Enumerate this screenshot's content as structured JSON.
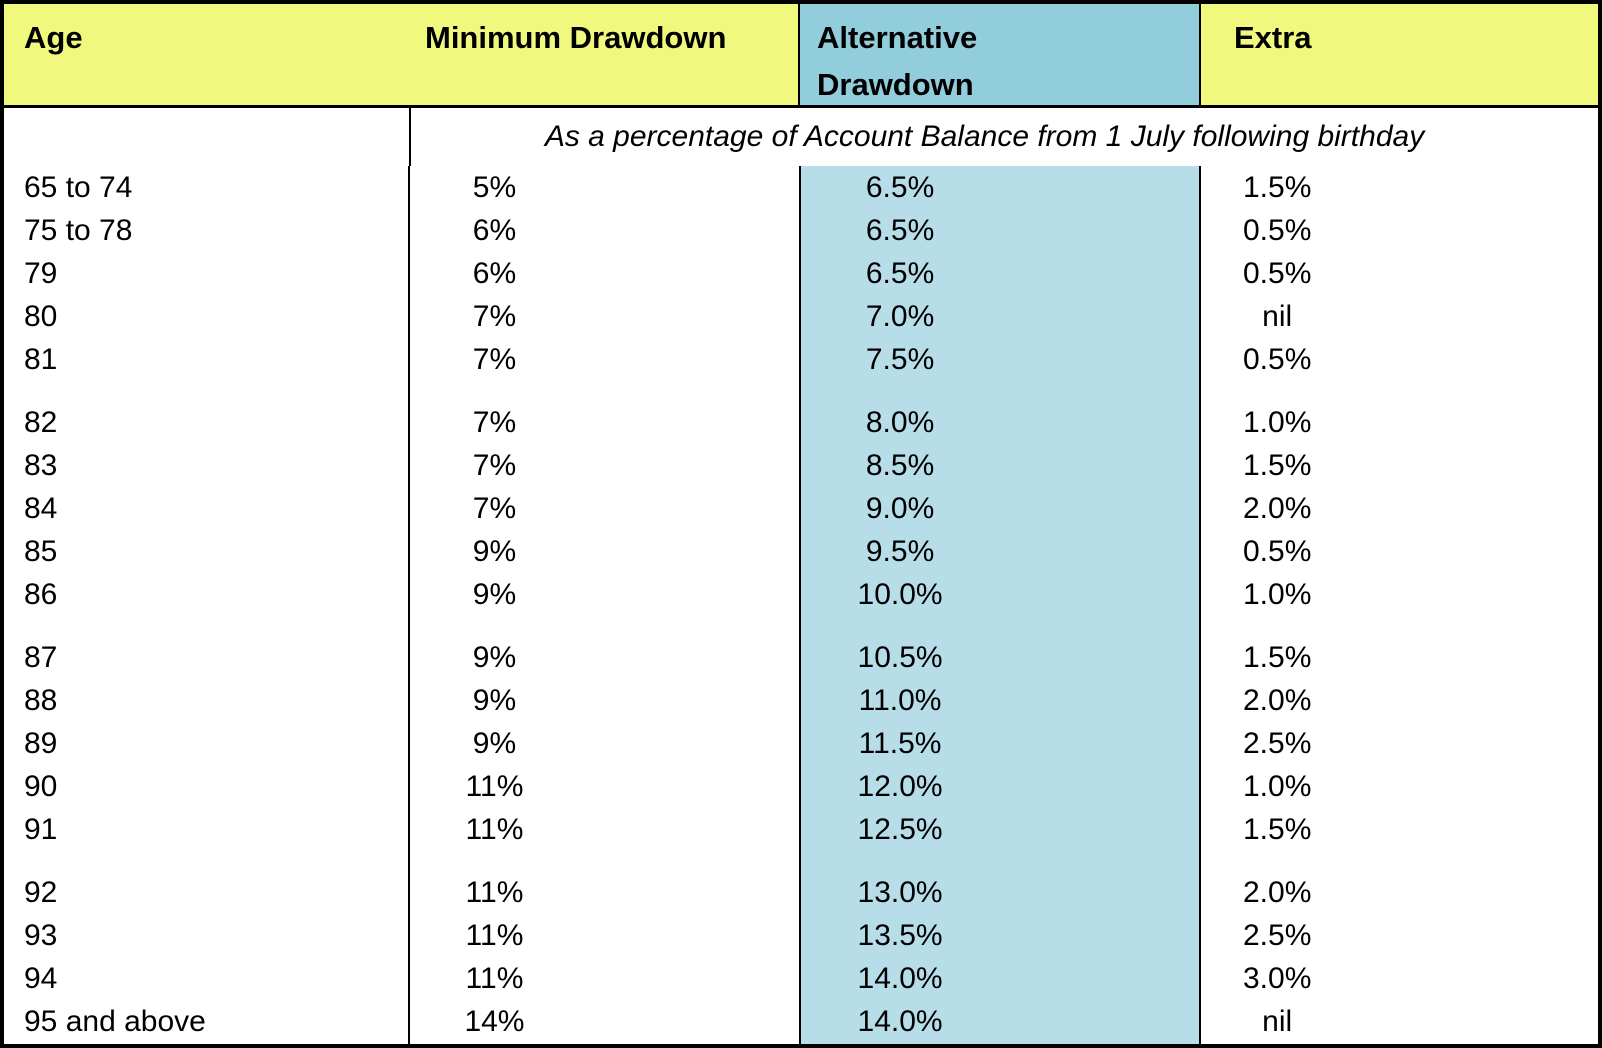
{
  "table": {
    "headers": [
      "Age",
      "Minimum Drawdown",
      "Alternative Drawdown",
      "Extra"
    ],
    "subtitle": "As a percentage of Account Balance from 1 July following birthday",
    "column_keys": [
      "age",
      "minimum_drawdown",
      "alternative_drawdown",
      "extra"
    ],
    "groups": [
      {
        "rows": [
          {
            "age": "65 to 74",
            "minimum_drawdown": "5%",
            "alternative_drawdown": "6.5%",
            "extra": "1.5%"
          },
          {
            "age": "75 to 78",
            "minimum_drawdown": "6%",
            "alternative_drawdown": "6.5%",
            "extra": "0.5%"
          },
          {
            "age": "79",
            "minimum_drawdown": "6%",
            "alternative_drawdown": "6.5%",
            "extra": "0.5%"
          },
          {
            "age": "80",
            "minimum_drawdown": "7%",
            "alternative_drawdown": "7.0%",
            "extra": "nil"
          },
          {
            "age": "81",
            "minimum_drawdown": "7%",
            "alternative_drawdown": "7.5%",
            "extra": "0.5%"
          }
        ]
      },
      {
        "rows": [
          {
            "age": "82",
            "minimum_drawdown": "7%",
            "alternative_drawdown": "8.0%",
            "extra": "1.0%"
          },
          {
            "age": "83",
            "minimum_drawdown": "7%",
            "alternative_drawdown": "8.5%",
            "extra": "1.5%"
          },
          {
            "age": "84",
            "minimum_drawdown": "7%",
            "alternative_drawdown": "9.0%",
            "extra": "2.0%"
          },
          {
            "age": "85",
            "minimum_drawdown": "9%",
            "alternative_drawdown": "9.5%",
            "extra": "0.5%"
          },
          {
            "age": "86",
            "minimum_drawdown": "9%",
            "alternative_drawdown": "10.0%",
            "extra": "1.0%"
          }
        ]
      },
      {
        "rows": [
          {
            "age": "87",
            "minimum_drawdown": "9%",
            "alternative_drawdown": "10.5%",
            "extra": "1.5%"
          },
          {
            "age": "88",
            "minimum_drawdown": "9%",
            "alternative_drawdown": "11.0%",
            "extra": "2.0%"
          },
          {
            "age": "89",
            "minimum_drawdown": "9%",
            "alternative_drawdown": "11.5%",
            "extra": "2.5%"
          },
          {
            "age": "90",
            "minimum_drawdown": "11%",
            "alternative_drawdown": "12.0%",
            "extra": "1.0%"
          },
          {
            "age": "91",
            "minimum_drawdown": "11%",
            "alternative_drawdown": "12.5%",
            "extra": "1.5%"
          }
        ]
      },
      {
        "rows": [
          {
            "age": "92",
            "minimum_drawdown": "11%",
            "alternative_drawdown": "13.0%",
            "extra": "2.0%"
          },
          {
            "age": "93",
            "minimum_drawdown": "11%",
            "alternative_drawdown": "13.5%",
            "extra": "2.5%"
          },
          {
            "age": "94",
            "minimum_drawdown": "11%",
            "alternative_drawdown": "14.0%",
            "extra": "3.0%"
          },
          {
            "age": "95 and above",
            "minimum_drawdown": "14%",
            "alternative_drawdown": "14.0%",
            "extra": "nil"
          }
        ]
      }
    ],
    "colors": {
      "header_yellow": "#F0F97E",
      "header_blue": "#92CDDC",
      "column_blue": "#B7DDE9",
      "border_black": "#000000"
    }
  }
}
